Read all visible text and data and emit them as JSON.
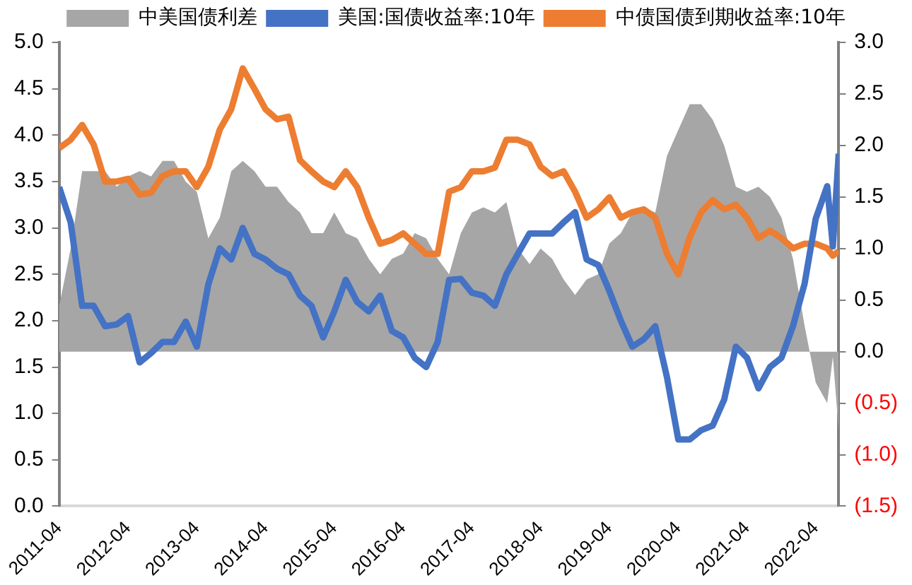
{
  "chart_data": {
    "type": "line",
    "x": [
      "2011-04",
      "2011-06",
      "2011-08",
      "2011-10",
      "2011-12",
      "2012-02",
      "2012-04",
      "2012-06",
      "2012-08",
      "2012-10",
      "2012-12",
      "2013-02",
      "2013-04",
      "2013-06",
      "2013-08",
      "2013-10",
      "2013-12",
      "2014-02",
      "2014-04",
      "2014-06",
      "2014-08",
      "2014-10",
      "2014-12",
      "2015-02",
      "2015-04",
      "2015-06",
      "2015-08",
      "2015-10",
      "2015-12",
      "2016-02",
      "2016-04",
      "2016-06",
      "2016-08",
      "2016-10",
      "2016-12",
      "2017-02",
      "2017-04",
      "2017-06",
      "2017-08",
      "2017-10",
      "2017-12",
      "2018-02",
      "2018-04",
      "2018-06",
      "2018-08",
      "2018-10",
      "2018-12",
      "2019-02",
      "2019-04",
      "2019-06",
      "2019-08",
      "2019-10",
      "2019-12",
      "2020-02",
      "2020-04",
      "2020-06",
      "2020-08",
      "2020-10",
      "2020-12",
      "2021-02",
      "2021-04",
      "2021-06",
      "2021-08",
      "2021-10",
      "2021-12",
      "2022-02",
      "2022-04",
      "2022-06",
      "2022-07",
      "2022-08"
    ],
    "series": [
      {
        "name": "中美国债利差",
        "type": "area",
        "axis": "y2",
        "color": "#a6a6a6",
        "values": [
          0.44,
          1.0,
          1.75,
          1.75,
          1.75,
          1.6,
          1.7,
          1.75,
          1.7,
          1.85,
          1.85,
          1.65,
          1.55,
          1.1,
          1.3,
          1.75,
          1.85,
          1.75,
          1.6,
          1.6,
          1.45,
          1.35,
          1.15,
          1.15,
          1.35,
          1.15,
          1.1,
          0.9,
          0.75,
          0.9,
          0.95,
          1.15,
          1.1,
          0.9,
          0.75,
          1.15,
          1.35,
          1.4,
          1.35,
          1.45,
          1.0,
          0.85,
          1.0,
          0.9,
          0.7,
          0.55,
          0.7,
          0.75,
          1.05,
          1.15,
          1.35,
          1.4,
          1.35,
          1.9,
          2.15,
          2.4,
          2.4,
          2.25,
          2.0,
          1.6,
          1.55,
          1.6,
          1.5,
          1.3,
          0.9,
          0.25,
          -0.3,
          -0.5,
          -0.05,
          -0.77
        ]
      },
      {
        "name": "美国:国债收益率:10年",
        "color": "#4472c4",
        "values": [
          3.44,
          3.06,
          2.16,
          2.16,
          1.94,
          1.96,
          2.05,
          1.55,
          1.65,
          1.77,
          1.77,
          1.99,
          1.72,
          2.39,
          2.78,
          2.66,
          3.0,
          2.72,
          2.66,
          2.56,
          2.5,
          2.27,
          2.16,
          1.82,
          2.1,
          2.44,
          2.2,
          2.1,
          2.27,
          1.89,
          1.82,
          1.6,
          1.5,
          1.77,
          2.44,
          2.45,
          2.3,
          2.27,
          2.16,
          2.5,
          2.72,
          2.94,
          2.94,
          2.94,
          3.06,
          3.17,
          2.66,
          2.6,
          2.32,
          2.0,
          1.72,
          1.8,
          1.94,
          1.39,
          0.72,
          0.72,
          0.82,
          0.87,
          1.15,
          1.72,
          1.6,
          1.27,
          1.5,
          1.6,
          1.94,
          2.4,
          3.1,
          3.45,
          2.8,
          3.8
        ]
      },
      {
        "name": "中债国债到期收益率:10年",
        "color": "#ed7d31",
        "values": [
          3.86,
          3.95,
          4.11,
          3.9,
          3.5,
          3.5,
          3.53,
          3.36,
          3.38,
          3.56,
          3.61,
          3.61,
          3.44,
          3.66,
          4.06,
          4.28,
          4.72,
          4.5,
          4.28,
          4.17,
          4.2,
          3.73,
          3.61,
          3.5,
          3.44,
          3.61,
          3.44,
          3.11,
          2.83,
          2.87,
          2.94,
          2.83,
          2.72,
          2.72,
          3.39,
          3.44,
          3.61,
          3.61,
          3.65,
          3.95,
          3.95,
          3.9,
          3.66,
          3.56,
          3.61,
          3.39,
          3.11,
          3.2,
          3.33,
          3.11,
          3.17,
          3.2,
          3.11,
          2.72,
          2.5,
          2.9,
          3.17,
          3.3,
          3.2,
          3.25,
          3.11,
          2.89,
          2.97,
          2.89,
          2.78,
          2.83,
          2.83,
          2.78,
          2.7,
          2.75
        ]
      }
    ],
    "xlim": [
      "2011-04",
      "2022-08"
    ],
    "xticks": [
      "2011-04",
      "2012-04",
      "2013-04",
      "2014-04",
      "2015-04",
      "2016-04",
      "2017-04",
      "2018-04",
      "2019-04",
      "2020-04",
      "2021-04",
      "2022-04"
    ],
    "ylim": [
      0,
      5
    ],
    "yticks": [
      {
        "value": 0,
        "label": "0.0"
      },
      {
        "value": 0.5,
        "label": "0.5"
      },
      {
        "value": 1,
        "label": "1.0"
      },
      {
        "value": 1.5,
        "label": "1.5"
      },
      {
        "value": 2,
        "label": "2.0"
      },
      {
        "value": 2.5,
        "label": "2.5"
      },
      {
        "value": 3,
        "label": "3.0"
      },
      {
        "value": 3.5,
        "label": "3.5"
      },
      {
        "value": 4,
        "label": "4.0"
      },
      {
        "value": 4.5,
        "label": "4.5"
      },
      {
        "value": 5,
        "label": "5.0"
      }
    ],
    "y2lim": [
      -1.5,
      3
    ],
    "y2ticks": [
      {
        "value": -1.5,
        "label": "(1.5)"
      },
      {
        "value": -1,
        "label": "(1.0)"
      },
      {
        "value": -0.5,
        "label": "(0.5)"
      },
      {
        "value": 0,
        "label": "0.0"
      },
      {
        "value": 0.5,
        "label": "0.5"
      },
      {
        "value": 1,
        "label": "1.0"
      },
      {
        "value": 1.5,
        "label": "1.5"
      },
      {
        "value": 2,
        "label": "2.0"
      },
      {
        "value": 2.5,
        "label": "2.5"
      },
      {
        "value": 3,
        "label": "3.0"
      }
    ],
    "grid": false,
    "legend": "top",
    "marker": "none",
    "line_style": "solid"
  }
}
